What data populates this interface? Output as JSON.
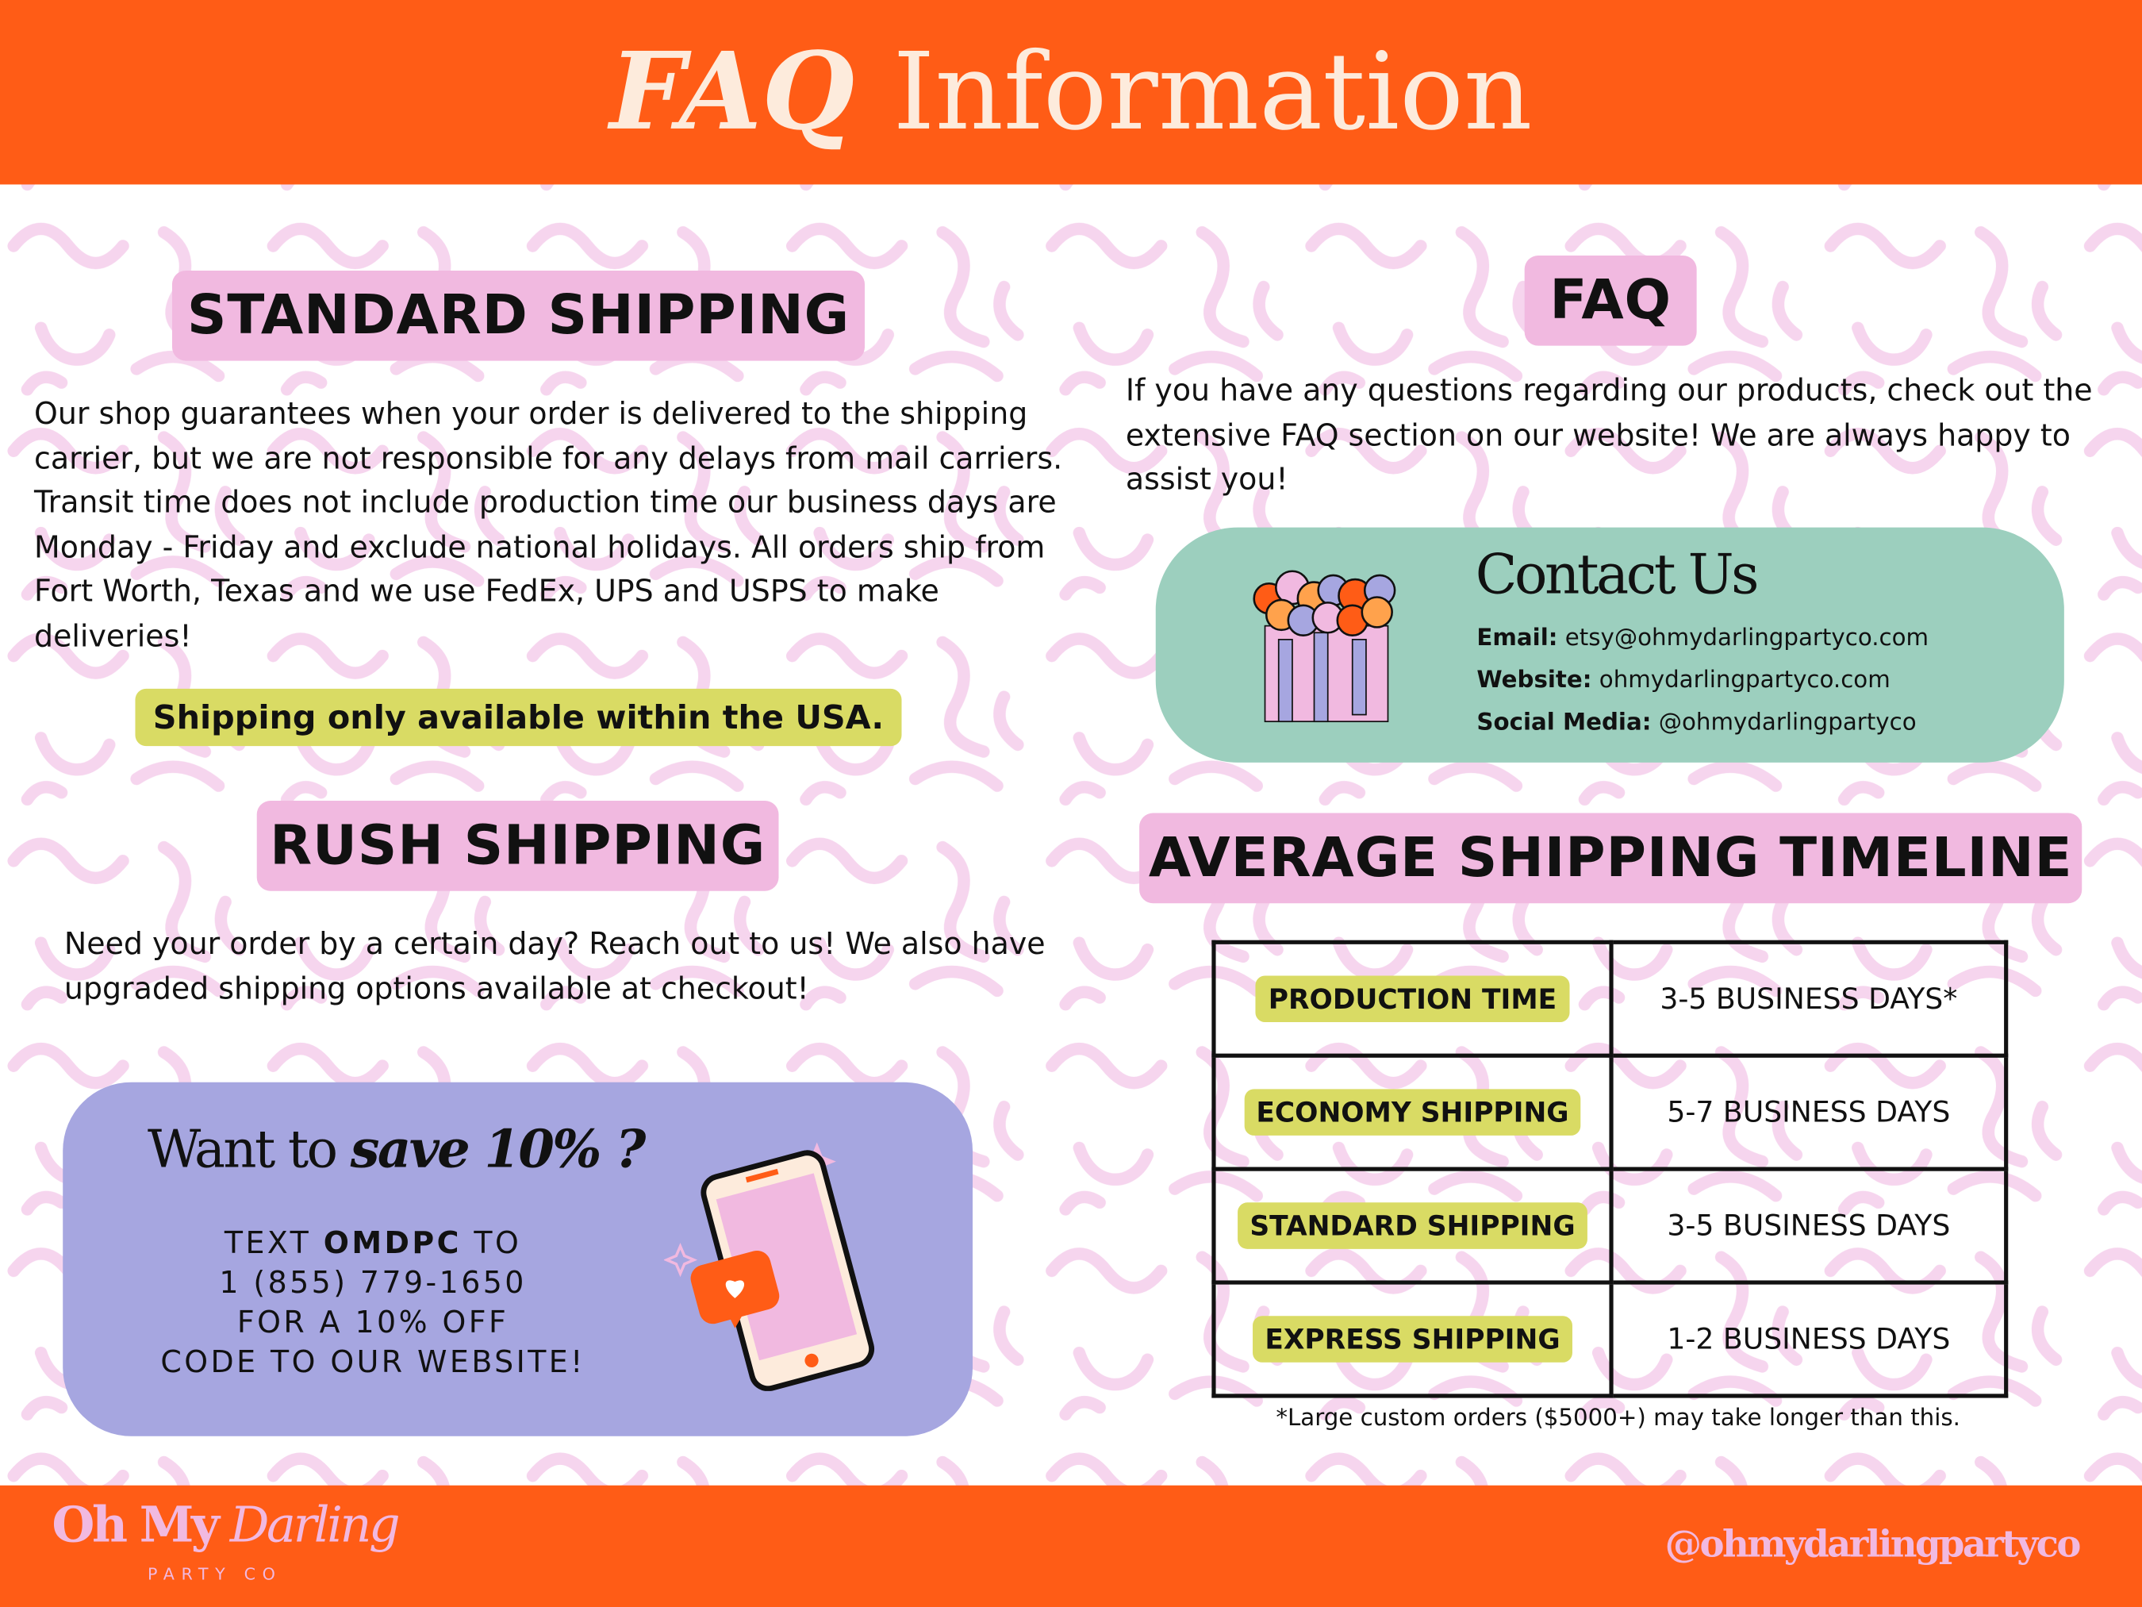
{
  "header": {
    "title_emphasis": "FAQ",
    "title_rest": "Information"
  },
  "standard_shipping": {
    "heading": "STANDARD SHIPPING",
    "text": "Our shop guarantees when your order is delivered to the shipping carrier, but we are not responsible for any delays from mail carriers.  Transit time does not include production time our business days are Monday - Friday and exclude national holidays. All orders ship from Fort Worth, Texas and we use FedEx, UPS and USPS to make deliveries!",
    "notice": "Shipping only available within the USA."
  },
  "rush_shipping": {
    "heading": "RUSH SHIPPING",
    "text": "Need your order by a certain day?  Reach out to us!  We also have upgraded shipping options available at checkout!"
  },
  "promo": {
    "title_plain": "Want to ",
    "title_bold": "save 10% ?",
    "line1_pre": "TEXT ",
    "line1_code": "OMDPC",
    "line1_post": " TO",
    "line2": "1 (855) 779-1650",
    "line3": "FOR A 10% OFF",
    "line4": "CODE TO OUR WEBSITE!",
    "icon": "phone-heart-message-icon"
  },
  "faq": {
    "heading": "FAQ",
    "text": "If you have any questions regarding our products, check out the extensive FAQ section on our website! We are always happy to assist you!"
  },
  "contact": {
    "heading": "Contact Us",
    "email_label": "Email:",
    "email": "etsy@ohmydarlingpartyco.com",
    "website_label": "Website:",
    "website": "ohmydarlingpartyco.com",
    "social_label": "Social Media:",
    "social": "@ohmydarlingpartyco",
    "icon": "balloon-garland-icon"
  },
  "timeline": {
    "heading": "AVERAGE SHIPPING TIMELINE",
    "rows": [
      {
        "label": "PRODUCTION TIME",
        "value": "3-5 BUSINESS DAYS*"
      },
      {
        "label": "ECONOMY SHIPPING",
        "value": "5-7 BUSINESS DAYS"
      },
      {
        "label": "STANDARD SHIPPING",
        "value": "3-5 BUSINESS DAYS"
      },
      {
        "label": "EXPRESS SHIPPING",
        "value": "1-2 BUSINESS DAYS"
      }
    ],
    "footnote": "*Large custom orders ($5000+) may take longer than this."
  },
  "footer": {
    "logo_main": "Oh My",
    "logo_script": "Darling",
    "logo_sub": "PARTY CO",
    "handle": "@ohmydarlingpartyco"
  },
  "colors": {
    "orange": "#FF5C16",
    "pink": "#F1B9E0",
    "teal": "#9CCFBE",
    "lavender": "#A6A6E0",
    "yellow": "#D9DB64"
  }
}
